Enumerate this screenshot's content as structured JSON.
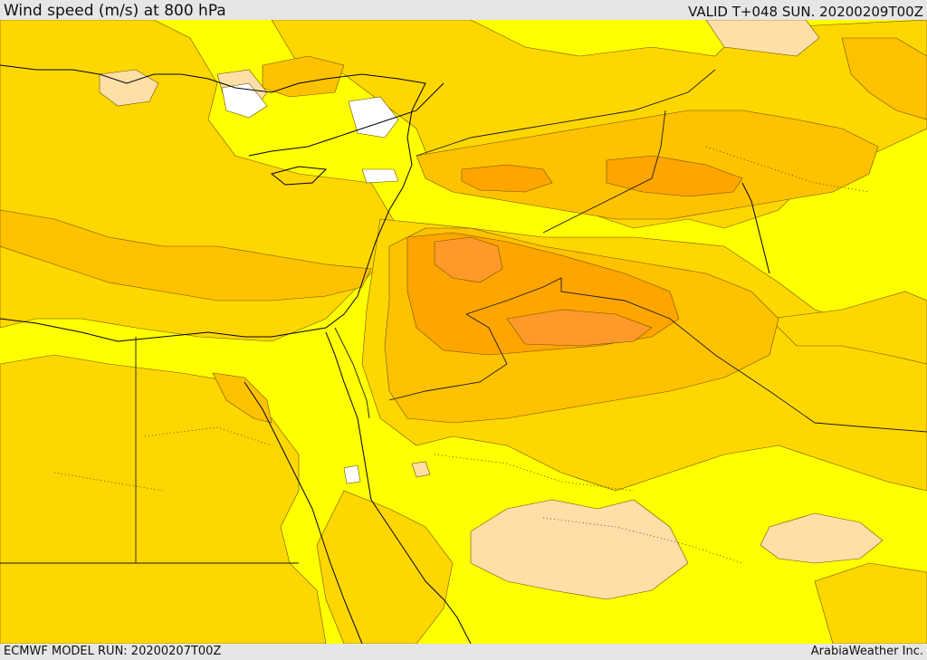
{
  "header": {
    "title": "Wind speed (m/s) at 800 hPa",
    "valid_time": "VALID T+048 SUN. 20200209T00Z"
  },
  "footer": {
    "model_run": "ECMWF MODEL RUN: 20200207T00Z",
    "credit": "ArabiaWeather Inc."
  },
  "map": {
    "projection_region": "Eastern Mediterranean, Levant, Arabia and Northeast Africa",
    "colors": {
      "light_yellow": "#ffff00",
      "gold": "#ffd700",
      "orange_light": "#ffc200",
      "orange_mid": "#ffa500",
      "orange_dark": "#ff9a2a",
      "beige": "#ffdfa8",
      "white": "#ffffff",
      "coastline": "#000000",
      "border": "#1a1a1a"
    }
  }
}
